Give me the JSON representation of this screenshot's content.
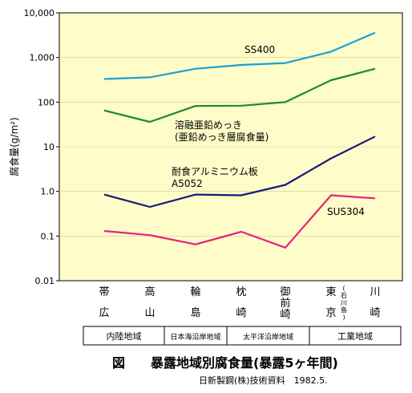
{
  "chart_data": {
    "type": "line",
    "y_scale": "log",
    "ylim": [
      0.01,
      10000
    ],
    "yticks": [
      "10,000",
      "1,000",
      "100",
      "10",
      "1.0",
      "0.1",
      "0.01"
    ],
    "ylabel": "腐食量(g/m²)",
    "categories": [
      {
        "top": "帯",
        "bottom": "広"
      },
      {
        "top": "高",
        "bottom": "山"
      },
      {
        "top": "輪",
        "bottom": "島"
      },
      {
        "top": "枕",
        "bottom": "崎"
      },
      {
        "top": "御",
        "mid": "前",
        "bottom": "崎"
      },
      {
        "top": "東",
        "bottom": "京",
        "note": "(石川島)"
      },
      {
        "top": "川",
        "bottom": "崎"
      }
    ],
    "regions": [
      {
        "label": "内陸地域",
        "from": 0,
        "to": 1
      },
      {
        "label": "日本海沿岸地域",
        "from": 2,
        "to": 2
      },
      {
        "label": "太平洋沿岸地域",
        "from": 3,
        "to": 4
      },
      {
        "label": "工業地域",
        "from": 5,
        "to": 6
      }
    ],
    "series": [
      {
        "name": "SS400",
        "color": "#1aa0d8",
        "values": [
          330,
          360,
          560,
          680,
          750,
          1350,
          3600
        ]
      },
      {
        "name": "溶融亜鉛めっき(亜鉛めっき層腐食量)",
        "label_lines": [
          "溶融亜鉛めっき",
          "(亜鉛めっき層腐食量)"
        ],
        "color": "#1a8c2a",
        "values": [
          65,
          36,
          82,
          83,
          100,
          310,
          560
        ]
      },
      {
        "name": "耐食アルミニウム板 A5052",
        "label_lines": [
          "耐食アルミニウム板",
          "A5052"
        ],
        "color": "#1a1a7a",
        "values": [
          0.85,
          0.45,
          0.85,
          0.82,
          1.4,
          5.5,
          17
        ]
      },
      {
        "name": "SUS304",
        "color": "#e8207a",
        "values": [
          0.13,
          0.105,
          0.065,
          0.125,
          0.055,
          0.82,
          0.7
        ]
      }
    ],
    "title": "図　　暴露地域別腐食量(暴露5ヶ年間)",
    "source": "日新製鋼(株)技術資料　1982.5."
  },
  "colors": {
    "plot_background": "#fefcc8",
    "axis": "#000000"
  }
}
